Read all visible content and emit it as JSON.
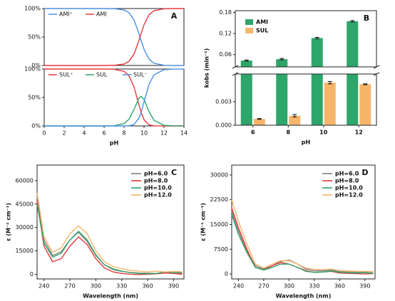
{
  "chart_data": [
    {
      "type": "line",
      "panel_label": "A",
      "x": [
        0,
        2,
        4,
        6,
        7,
        8,
        8.5,
        9,
        9.5,
        9.7,
        10,
        10.5,
        11,
        12,
        13,
        14
      ],
      "xlim": [
        0,
        14
      ],
      "ylim": [
        0,
        100
      ],
      "yticks": [
        {
          "value": 0,
          "label": "0%"
        },
        {
          "value": 50,
          "label": "50%"
        },
        {
          "value": 100,
          "label": "100%"
        }
      ],
      "legend": "top",
      "series": [
        {
          "name": "AMI⁺",
          "color": "#4a90e2",
          "values": [
            100,
            100,
            100,
            100,
            99.7,
            97.5,
            92.6,
            79.9,
            55.7,
            44.3,
            28.5,
            11.2,
            3.8,
            0.4,
            0,
            0
          ]
        },
        {
          "name": "AMI",
          "color": "#e8383d",
          "values": [
            0,
            0,
            0,
            0,
            0.3,
            2.5,
            7.4,
            20.1,
            44.3,
            55.7,
            71.5,
            88.8,
            96.2,
            99.6,
            100,
            100
          ]
        }
      ]
    },
    {
      "type": "line",
      "xlabel": "pH",
      "x": [
        0,
        2,
        4,
        6,
        7,
        8,
        8.5,
        9,
        9.5,
        9.7,
        10,
        10.5,
        11,
        12,
        13,
        14
      ],
      "xlim": [
        0,
        14
      ],
      "xticks": [
        0,
        2,
        4,
        6,
        8,
        10,
        12,
        14
      ],
      "ylim": [
        0,
        100
      ],
      "yticks": [
        {
          "value": 0,
          "label": "0%"
        },
        {
          "value": 50,
          "label": "50%"
        },
        {
          "value": 100,
          "label": "100%"
        }
      ],
      "legend": "top",
      "series": [
        {
          "name": "SUL⁺",
          "color": "#e8383d",
          "values": [
            100,
            100,
            100,
            100,
            99.6,
            95.9,
            87.8,
            68.2,
            36.5,
            24.3,
            10.9,
            1.9,
            0.2,
            0,
            0,
            0
          ]
        },
        {
          "name": "SUL",
          "color": "#2ea56a",
          "values": [
            0,
            0,
            0,
            0,
            0.4,
            4.1,
            11.9,
            29.1,
            49.3,
            52.0,
            46.6,
            25.3,
            9.9,
            1.1,
            0.1,
            0
          ]
        },
        {
          "name": "SUL⁻",
          "color": "#4a90e2",
          "values": [
            0,
            0,
            0,
            0,
            0,
            0,
            0.3,
            2.7,
            14.2,
            23.7,
            42.5,
            72.9,
            89.9,
            98.9,
            99.9,
            100
          ]
        }
      ]
    },
    {
      "type": "broken-bar",
      "panel_label": "B",
      "xlabel": "pH",
      "ylabel": "kobs (min⁻¹)",
      "categories": [
        "6",
        "8",
        "10",
        "12"
      ],
      "ylim": [
        0,
        0.0065
      ],
      "yticks": [
        {
          "value": 0,
          "label": "0.000"
        },
        0.003
      ],
      "y_upper_lim": [
        0.025,
        0.185
      ],
      "y_upper_ticks": [
        0.06,
        0.12,
        0.18
      ],
      "legend": "upper left",
      "series": [
        {
          "name": "AMI",
          "color": "#2ea56a",
          "values": [
            0.043,
            0.047,
            0.107,
            0.155
          ],
          "errors": [
            0.0015,
            0.002,
            0.002,
            0.002
          ]
        },
        {
          "name": "SUL",
          "color": "#f7b56b",
          "values": [
            0.0008,
            0.0012,
            0.0054,
            0.0052
          ],
          "errors": [
            5e-05,
            0.00015,
            0.00015,
            5e-05
          ]
        }
      ]
    },
    {
      "type": "line",
      "panel_label": "C",
      "xlabel": "Wavelength (nm)",
      "ylabel": "ε (M⁻¹ cm⁻¹)",
      "x": [
        232,
        240,
        250,
        260,
        270,
        280,
        290,
        300,
        310,
        320,
        330,
        340,
        350,
        360,
        370,
        380,
        390,
        400
      ],
      "xlim": [
        232,
        402
      ],
      "xticks": [
        240,
        270,
        300,
        330,
        360,
        390
      ],
      "ylim": [
        -3000,
        70000
      ],
      "yticks": [
        0,
        15000,
        30000,
        45000,
        60000
      ],
      "legend": "upper right",
      "series": [
        {
          "name": "pH=6.0",
          "color": "#808080",
          "values": [
            50000,
            22000,
            12000,
            14500,
            22000,
            27000,
            21000,
            12000,
            6000,
            3000,
            1800,
            1200,
            800,
            600,
            500,
            800,
            1000,
            600
          ]
        },
        {
          "name": "pH=8.0",
          "color": "#e8383d",
          "values": [
            47000,
            18000,
            8000,
            10000,
            18000,
            24000,
            19000,
            10000,
            4000,
            1500,
            500,
            0,
            -200,
            0,
            300,
            800,
            500,
            0
          ]
        },
        {
          "name": "pH=10.0",
          "color": "#2ea56a",
          "values": [
            45000,
            20000,
            11000,
            13500,
            22000,
            27500,
            22000,
            12500,
            6000,
            3500,
            2000,
            1000,
            500,
            300,
            500,
            1500,
            1000,
            1200
          ]
        },
        {
          "name": "pH=12.0",
          "color": "#f7b56b",
          "values": [
            52000,
            24000,
            14000,
            17000,
            26000,
            31000,
            26000,
            15000,
            8000,
            5000,
            3500,
            2500,
            2000,
            1500,
            2000,
            1500,
            1800,
            1500
          ]
        }
      ]
    },
    {
      "type": "line",
      "panel_label": "D",
      "xlabel": "Wavelength (nm)",
      "ylabel": "ε (M⁻¹ cm⁻¹)",
      "x": [
        232,
        240,
        250,
        260,
        270,
        280,
        290,
        300,
        310,
        320,
        330,
        340,
        350,
        360,
        370,
        380,
        390,
        400
      ],
      "xlim": [
        232,
        402
      ],
      "xticks": [
        240,
        270,
        300,
        330,
        360,
        390
      ],
      "ylim": [
        -1500,
        33000
      ],
      "yticks": [
        0,
        7500,
        15000,
        22500,
        30000
      ],
      "legend": "upper right",
      "series": [
        {
          "name": "pH=6.0",
          "color": "#808080",
          "values": [
            19000,
            13000,
            7000,
            2500,
            1500,
            2500,
            3800,
            4200,
            3000,
            1500,
            1000,
            1000,
            1200,
            800,
            700,
            600,
            700,
            600
          ]
        },
        {
          "name": "pH=8.0",
          "color": "#e8383d",
          "values": [
            20000,
            14000,
            7500,
            2000,
            1200,
            2500,
            3500,
            3000,
            2000,
            1000,
            500,
            600,
            800,
            300,
            200,
            100,
            0,
            100
          ]
        },
        {
          "name": "pH=10.0",
          "color": "#2ea56a",
          "values": [
            18000,
            12000,
            6500,
            2000,
            1200,
            2000,
            3000,
            3000,
            2000,
            800,
            500,
            600,
            900,
            500,
            400,
            300,
            400,
            200
          ]
        },
        {
          "name": "pH=12.0",
          "color": "#f7b56b",
          "values": [
            22500,
            16000,
            9000,
            3000,
            1800,
            3000,
            4000,
            4000,
            3000,
            1800,
            1400,
            1300,
            1500,
            1000,
            900,
            800,
            800,
            700
          ]
        }
      ]
    }
  ]
}
